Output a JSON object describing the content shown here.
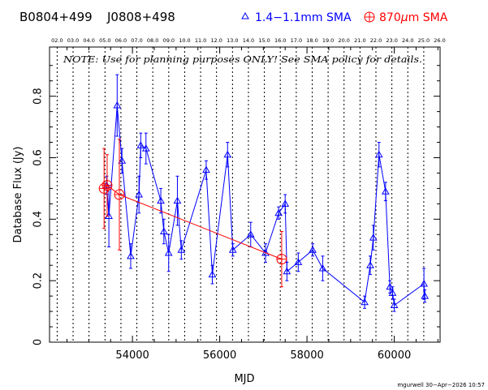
{
  "chart_data": {
    "type": "scatter",
    "header": {
      "source1": "B0804+499",
      "source2": "J0808+498",
      "legend_blue": "1.4−1.1mm SMA",
      "legend_red_prefix": "870",
      "legend_red_mu": "μ",
      "legend_red_suffix": "m SMA"
    },
    "note": "NOTE: Use for planning purposes ONLY!  See SMA policy for details.",
    "xlabel": "MJD",
    "ylabel": "Database Flux (Jy)",
    "credit": "mgurwell 30−Apr−2026 10:57",
    "xlim": [
      52100,
      61050
    ],
    "ylim": [
      0,
      0.96
    ],
    "x_ticks": [
      54000,
      56000,
      58000,
      60000
    ],
    "y_ticks": [
      0,
      0.2,
      0.4,
      0.6,
      0.8
    ],
    "year_ticks": [
      {
        "mjd": 52275,
        "label": "02.0"
      },
      {
        "mjd": 52640,
        "label": "03.0"
      },
      {
        "mjd": 53005,
        "label": "04.0"
      },
      {
        "mjd": 53371,
        "label": "05.0"
      },
      {
        "mjd": 53736,
        "label": "06.0"
      },
      {
        "mjd": 54101,
        "label": "07.0"
      },
      {
        "mjd": 54466,
        "label": "08.0"
      },
      {
        "mjd": 54832,
        "label": "09.0"
      },
      {
        "mjd": 55197,
        "label": "10.0"
      },
      {
        "mjd": 55562,
        "label": "11.0"
      },
      {
        "mjd": 55927,
        "label": "12.0"
      },
      {
        "mjd": 56293,
        "label": "13.0"
      },
      {
        "mjd": 56658,
        "label": "14.0"
      },
      {
        "mjd": 57023,
        "label": "15.0"
      },
      {
        "mjd": 57388,
        "label": "16.0"
      },
      {
        "mjd": 57754,
        "label": "17.0"
      },
      {
        "mjd": 58119,
        "label": "18.0"
      },
      {
        "mjd": 58484,
        "label": "19.0"
      },
      {
        "mjd": 58849,
        "label": "20.0"
      },
      {
        "mjd": 59215,
        "label": "21.0"
      },
      {
        "mjd": 59580,
        "label": "22.0"
      },
      {
        "mjd": 59945,
        "label": "23.0"
      },
      {
        "mjd": 60310,
        "label": "24.0"
      },
      {
        "mjd": 60676,
        "label": "25.0"
      },
      {
        "mjd": 61041,
        "label": "26.0"
      }
    ],
    "series": [
      {
        "color": "#0000ff",
        "marker": "triangle",
        "points": [
          {
            "x": 53410,
            "y": 0.51,
            "err": 0.03
          },
          {
            "x": 53460,
            "y": 0.41,
            "err": 0.1
          },
          {
            "x": 53650,
            "y": 0.77,
            "err": 0.1
          },
          {
            "x": 53760,
            "y": 0.59,
            "err": 0.04
          },
          {
            "x": 53960,
            "y": 0.28,
            "err": 0.04
          },
          {
            "x": 54150,
            "y": 0.48,
            "err": 0.06
          },
          {
            "x": 54190,
            "y": 0.64,
            "err": 0.04
          },
          {
            "x": 54310,
            "y": 0.63,
            "err": 0.05
          },
          {
            "x": 54650,
            "y": 0.46,
            "err": 0.04
          },
          {
            "x": 54720,
            "y": 0.36,
            "err": 0.04
          },
          {
            "x": 54830,
            "y": 0.29,
            "err": 0.06
          },
          {
            "x": 55030,
            "y": 0.46,
            "err": 0.08
          },
          {
            "x": 55120,
            "y": 0.3,
            "err": 0.03
          },
          {
            "x": 55690,
            "y": 0.56,
            "err": 0.03
          },
          {
            "x": 55830,
            "y": 0.22,
            "err": 0.03
          },
          {
            "x": 56180,
            "y": 0.61,
            "err": 0.04
          },
          {
            "x": 56300,
            "y": 0.3,
            "err": 0.02
          },
          {
            "x": 56710,
            "y": 0.35,
            "err": 0.04
          },
          {
            "x": 57050,
            "y": 0.29,
            "err": 0.03
          },
          {
            "x": 57350,
            "y": 0.42,
            "err": 0.02
          },
          {
            "x": 57500,
            "y": 0.45,
            "err": 0.03
          },
          {
            "x": 57540,
            "y": 0.23,
            "err": 0.03
          },
          {
            "x": 57800,
            "y": 0.26,
            "err": 0.03
          },
          {
            "x": 58130,
            "y": 0.3,
            "err": 0.02
          },
          {
            "x": 58360,
            "y": 0.24,
            "err": 0.04
          },
          {
            "x": 59320,
            "y": 0.13,
            "err": 0.02
          },
          {
            "x": 59450,
            "y": 0.25,
            "err": 0.03
          },
          {
            "x": 59520,
            "y": 0.34,
            "err": 0.04
          },
          {
            "x": 59650,
            "y": 0.61,
            "err": 0.04
          },
          {
            "x": 59800,
            "y": 0.49,
            "err": 0.03
          },
          {
            "x": 59900,
            "y": 0.18,
            "err": 0.02
          },
          {
            "x": 59960,
            "y": 0.16,
            "err": 0.02
          },
          {
            "x": 60000,
            "y": 0.12,
            "err": 0.02
          },
          {
            "x": 60680,
            "y": 0.19,
            "err": 0.05
          },
          {
            "x": 60700,
            "y": 0.15,
            "err": 0.02
          }
        ]
      },
      {
        "color": "#ff0000",
        "marker": "circle-plus",
        "points": [
          {
            "x": 53350,
            "y": 0.5,
            "err": 0.13
          },
          {
            "x": 53420,
            "y": 0.51,
            "err": 0.1
          },
          {
            "x": 53700,
            "y": 0.48,
            "err": 0.18
          },
          {
            "x": 57420,
            "y": 0.27,
            "err": 0.09
          }
        ]
      }
    ]
  }
}
